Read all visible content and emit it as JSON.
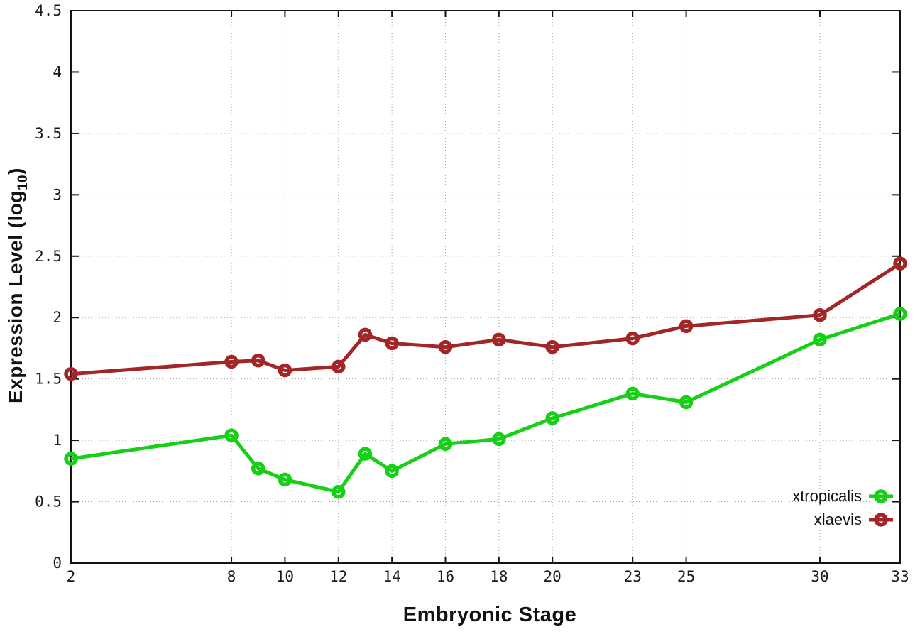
{
  "chart_data": {
    "type": "line",
    "title": "",
    "xlabel": "Embryonic Stage",
    "ylabel": "Expression Level (log10)",
    "ylabel_parts": {
      "prefix": "Expression Level (log",
      "sub": "10",
      "suffix": ")"
    },
    "x": [
      2,
      8,
      9,
      10,
      12,
      13,
      14,
      16,
      18,
      20,
      23,
      25,
      30,
      33
    ],
    "series": [
      {
        "name": "xtropicalis",
        "color": "#16d016",
        "values": [
          0.85,
          1.04,
          0.77,
          0.68,
          0.58,
          0.89,
          0.75,
          0.97,
          1.01,
          1.18,
          1.38,
          1.31,
          1.82,
          2.03
        ]
      },
      {
        "name": "xlaevis",
        "color": "#a22626",
        "values": [
          1.54,
          1.64,
          1.65,
          1.57,
          1.6,
          1.86,
          1.79,
          1.76,
          1.82,
          1.76,
          1.83,
          1.93,
          2.02,
          2.44
        ]
      }
    ],
    "xlim": [
      2,
      33
    ],
    "ylim": [
      0,
      4.5
    ],
    "xticks": [
      2,
      8,
      10,
      12,
      14,
      16,
      18,
      20,
      23,
      25,
      30,
      33
    ],
    "yticks": [
      0,
      0.5,
      1,
      1.5,
      2,
      2.5,
      3,
      3.5,
      4,
      4.5
    ],
    "grid": true,
    "legend_position": "bottom-right",
    "colors": {
      "axis": "#141414",
      "grid": "#a0a0a0",
      "text": "#1b1b1b"
    }
  }
}
